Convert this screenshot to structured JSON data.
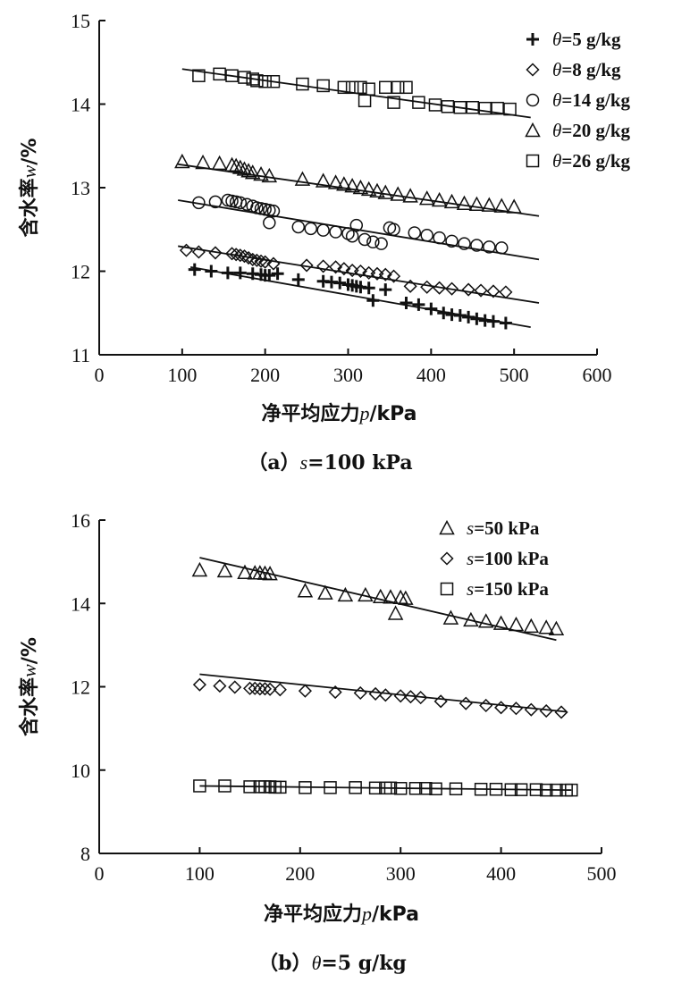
{
  "chart_data": [
    {
      "panel": "a",
      "type": "scatter",
      "caption_prefix": "（a）",
      "caption_var": "s",
      "caption_rest": "=100 kPa",
      "xlabel": "净平均应力",
      "xlabel_var": "p",
      "xlabel_unit": "/kPa",
      "ylabel": "含水率",
      "ylabel_var": "w",
      "ylabel_unit": "/%",
      "xlim": [
        0,
        600
      ],
      "ylim": [
        11,
        15
      ],
      "xticks": [
        0,
        100,
        200,
        300,
        400,
        500,
        600
      ],
      "yticks": [
        11,
        12,
        13,
        14,
        15
      ],
      "legend_position": "top-right",
      "series": [
        {
          "name_var": "θ",
          "name_rest": "=5 g/kg",
          "marker": "plus",
          "points": [
            [
              115,
              12.02
            ],
            [
              135,
              12.0
            ],
            [
              155,
              11.98
            ],
            [
              170,
              11.98
            ],
            [
              185,
              11.97
            ],
            [
              195,
              11.96
            ],
            [
              200,
              11.95
            ],
            [
              205,
              11.95
            ],
            [
              215,
              11.97
            ],
            [
              240,
              11.9
            ],
            [
              270,
              11.88
            ],
            [
              280,
              11.87
            ],
            [
              290,
              11.86
            ],
            [
              300,
              11.84
            ],
            [
              305,
              11.83
            ],
            [
              310,
              11.82
            ],
            [
              315,
              11.81
            ],
            [
              325,
              11.8
            ],
            [
              330,
              11.65
            ],
            [
              345,
              11.78
            ],
            [
              370,
              11.62
            ],
            [
              385,
              11.6
            ],
            [
              400,
              11.55
            ],
            [
              415,
              11.5
            ],
            [
              425,
              11.48
            ],
            [
              435,
              11.47
            ],
            [
              445,
              11.45
            ],
            [
              455,
              11.43
            ],
            [
              465,
              11.41
            ],
            [
              475,
              11.4
            ],
            [
              490,
              11.38
            ]
          ],
          "fit": [
            [
              110,
              12.05
            ],
            [
              520,
              11.33
            ]
          ]
        },
        {
          "name_var": "θ",
          "name_rest": "=8 g/kg",
          "marker": "diamond",
          "points": [
            [
              105,
              12.25
            ],
            [
              120,
              12.23
            ],
            [
              140,
              12.22
            ],
            [
              160,
              12.21
            ],
            [
              165,
              12.2
            ],
            [
              170,
              12.19
            ],
            [
              175,
              12.18
            ],
            [
              180,
              12.16
            ],
            [
              185,
              12.14
            ],
            [
              190,
              12.13
            ],
            [
              195,
              12.12
            ],
            [
              200,
              12.11
            ],
            [
              210,
              12.09
            ],
            [
              250,
              12.07
            ],
            [
              270,
              12.06
            ],
            [
              285,
              12.05
            ],
            [
              295,
              12.03
            ],
            [
              305,
              12.01
            ],
            [
              315,
              12.0
            ],
            [
              325,
              11.98
            ],
            [
              335,
              11.97
            ],
            [
              345,
              11.96
            ],
            [
              355,
              11.94
            ],
            [
              375,
              11.82
            ],
            [
              395,
              11.81
            ],
            [
              410,
              11.8
            ],
            [
              425,
              11.79
            ],
            [
              445,
              11.78
            ],
            [
              460,
              11.77
            ],
            [
              475,
              11.76
            ],
            [
              490,
              11.75
            ]
          ],
          "fit": [
            [
              95,
              12.3
            ],
            [
              530,
              11.62
            ]
          ]
        },
        {
          "name_var": "θ",
          "name_rest": "=14 g/kg",
          "marker": "circle",
          "points": [
            [
              120,
              12.82
            ],
            [
              140,
              12.83
            ],
            [
              155,
              12.85
            ],
            [
              160,
              12.84
            ],
            [
              165,
              12.83
            ],
            [
              170,
              12.82
            ],
            [
              178,
              12.8
            ],
            [
              185,
              12.78
            ],
            [
              190,
              12.76
            ],
            [
              195,
              12.75
            ],
            [
              200,
              12.74
            ],
            [
              205,
              12.73
            ],
            [
              210,
              12.72
            ],
            [
              205,
              12.58
            ],
            [
              240,
              12.53
            ],
            [
              255,
              12.51
            ],
            [
              270,
              12.49
            ],
            [
              285,
              12.47
            ],
            [
              300,
              12.45
            ],
            [
              305,
              12.42
            ],
            [
              310,
              12.55
            ],
            [
              320,
              12.38
            ],
            [
              330,
              12.35
            ],
            [
              340,
              12.33
            ],
            [
              350,
              12.52
            ],
            [
              355,
              12.5
            ],
            [
              380,
              12.46
            ],
            [
              395,
              12.43
            ],
            [
              410,
              12.4
            ],
            [
              425,
              12.36
            ],
            [
              440,
              12.33
            ],
            [
              455,
              12.31
            ],
            [
              470,
              12.29
            ],
            [
              485,
              12.28
            ]
          ],
          "fit": [
            [
              95,
              12.85
            ],
            [
              530,
              12.14
            ]
          ]
        },
        {
          "name_var": "θ",
          "name_rest": "=20 g/kg",
          "marker": "triangle",
          "points": [
            [
              100,
              13.31
            ],
            [
              125,
              13.3
            ],
            [
              145,
              13.29
            ],
            [
              160,
              13.27
            ],
            [
              165,
              13.26
            ],
            [
              170,
              13.24
            ],
            [
              175,
              13.22
            ],
            [
              180,
              13.2
            ],
            [
              185,
              13.18
            ],
            [
              195,
              13.16
            ],
            [
              205,
              13.14
            ],
            [
              245,
              13.1
            ],
            [
              270,
              13.08
            ],
            [
              285,
              13.06
            ],
            [
              295,
              13.04
            ],
            [
              305,
              13.02
            ],
            [
              315,
              13.0
            ],
            [
              325,
              12.98
            ],
            [
              335,
              12.96
            ],
            [
              345,
              12.94
            ],
            [
              360,
              12.92
            ],
            [
              375,
              12.9
            ],
            [
              395,
              12.87
            ],
            [
              410,
              12.85
            ],
            [
              425,
              12.83
            ],
            [
              440,
              12.81
            ],
            [
              455,
              12.8
            ],
            [
              470,
              12.79
            ],
            [
              485,
              12.78
            ],
            [
              500,
              12.77
            ]
          ],
          "fit": [
            [
              95,
              13.28
            ],
            [
              530,
              12.66
            ]
          ]
        },
        {
          "name_var": "θ",
          "name_rest": "=26 g/kg",
          "marker": "square",
          "points": [
            [
              120,
              14.34
            ],
            [
              145,
              14.36
            ],
            [
              160,
              14.34
            ],
            [
              175,
              14.32
            ],
            [
              185,
              14.3
            ],
            [
              190,
              14.28
            ],
            [
              200,
              14.27
            ],
            [
              210,
              14.27
            ],
            [
              245,
              14.24
            ],
            [
              270,
              14.22
            ],
            [
              295,
              14.2
            ],
            [
              305,
              14.2
            ],
            [
              315,
              14.2
            ],
            [
              325,
              14.18
            ],
            [
              320,
              14.04
            ],
            [
              345,
              14.2
            ],
            [
              355,
              14.02
            ],
            [
              360,
              14.2
            ],
            [
              370,
              14.2
            ],
            [
              385,
              14.02
            ],
            [
              405,
              13.99
            ],
            [
              420,
              13.97
            ],
            [
              435,
              13.96
            ],
            [
              450,
              13.96
            ],
            [
              465,
              13.95
            ],
            [
              480,
              13.95
            ],
            [
              495,
              13.94
            ]
          ],
          "fit": [
            [
              100,
              14.42
            ],
            [
              520,
              13.84
            ]
          ]
        }
      ]
    },
    {
      "panel": "b",
      "type": "scatter",
      "caption_prefix": "（b）",
      "caption_var": "θ",
      "caption_rest": "=5 g/kg",
      "xlabel": "净平均应力",
      "xlabel_var": "p",
      "xlabel_unit": "/kPa",
      "ylabel": "含水率",
      "ylabel_var": "w",
      "ylabel_unit": "/%",
      "xlim": [
        0,
        500
      ],
      "ylim": [
        8,
        16
      ],
      "xticks": [
        0,
        100,
        200,
        300,
        400,
        500
      ],
      "yticks": [
        8,
        10,
        12,
        14,
        16
      ],
      "legend_position": "top-right",
      "series": [
        {
          "name_var": "s",
          "name_rest": "=50 kPa",
          "marker": "triangle",
          "points": [
            [
              100,
              14.8
            ],
            [
              125,
              14.78
            ],
            [
              145,
              14.74
            ],
            [
              155,
              14.73
            ],
            [
              160,
              14.73
            ],
            [
              165,
              14.72
            ],
            [
              170,
              14.71
            ],
            [
              205,
              14.3
            ],
            [
              225,
              14.25
            ],
            [
              245,
              14.2
            ],
            [
              265,
              14.2
            ],
            [
              280,
              14.16
            ],
            [
              290,
              14.15
            ],
            [
              300,
              14.14
            ],
            [
              305,
              14.12
            ],
            [
              295,
              13.76
            ],
            [
              350,
              13.65
            ],
            [
              370,
              13.6
            ],
            [
              385,
              13.57
            ],
            [
              400,
              13.52
            ],
            [
              415,
              13.49
            ],
            [
              430,
              13.45
            ],
            [
              445,
              13.42
            ],
            [
              455,
              13.39
            ]
          ],
          "fit": [
            [
              100,
              15.1
            ],
            [
              455,
              13.12
            ]
          ]
        },
        {
          "name_var": "s",
          "name_rest": "=100 kPa",
          "marker": "diamond",
          "points": [
            [
              100,
              12.05
            ],
            [
              120,
              12.02
            ],
            [
              135,
              11.99
            ],
            [
              150,
              11.96
            ],
            [
              155,
              11.96
            ],
            [
              160,
              11.95
            ],
            [
              165,
              11.95
            ],
            [
              170,
              11.94
            ],
            [
              180,
              11.93
            ],
            [
              205,
              11.9
            ],
            [
              235,
              11.87
            ],
            [
              260,
              11.85
            ],
            [
              275,
              11.83
            ],
            [
              285,
              11.8
            ],
            [
              300,
              11.78
            ],
            [
              310,
              11.76
            ],
            [
              320,
              11.74
            ],
            [
              340,
              11.65
            ],
            [
              365,
              11.6
            ],
            [
              385,
              11.55
            ],
            [
              400,
              11.5
            ],
            [
              415,
              11.48
            ],
            [
              430,
              11.45
            ],
            [
              445,
              11.42
            ],
            [
              460,
              11.39
            ]
          ],
          "fit": [
            [
              100,
              12.3
            ],
            [
              465,
              11.4
            ]
          ]
        },
        {
          "name_var": "s",
          "name_rest": "=150 kPa",
          "marker": "square",
          "points": [
            [
              100,
              9.62
            ],
            [
              125,
              9.62
            ],
            [
              150,
              9.6
            ],
            [
              160,
              9.6
            ],
            [
              165,
              9.6
            ],
            [
              170,
              9.6
            ],
            [
              175,
              9.59
            ],
            [
              180,
              9.59
            ],
            [
              205,
              9.58
            ],
            [
              230,
              9.58
            ],
            [
              255,
              9.58
            ],
            [
              275,
              9.57
            ],
            [
              285,
              9.57
            ],
            [
              290,
              9.57
            ],
            [
              300,
              9.56
            ],
            [
              315,
              9.56
            ],
            [
              325,
              9.56
            ],
            [
              335,
              9.55
            ],
            [
              355,
              9.55
            ],
            [
              380,
              9.54
            ],
            [
              395,
              9.54
            ],
            [
              410,
              9.53
            ],
            [
              420,
              9.53
            ],
            [
              435,
              9.53
            ],
            [
              445,
              9.52
            ],
            [
              455,
              9.52
            ],
            [
              465,
              9.52
            ],
            [
              470,
              9.52
            ]
          ],
          "fit": [
            [
              100,
              9.62
            ],
            [
              470,
              9.52
            ]
          ]
        }
      ]
    }
  ]
}
